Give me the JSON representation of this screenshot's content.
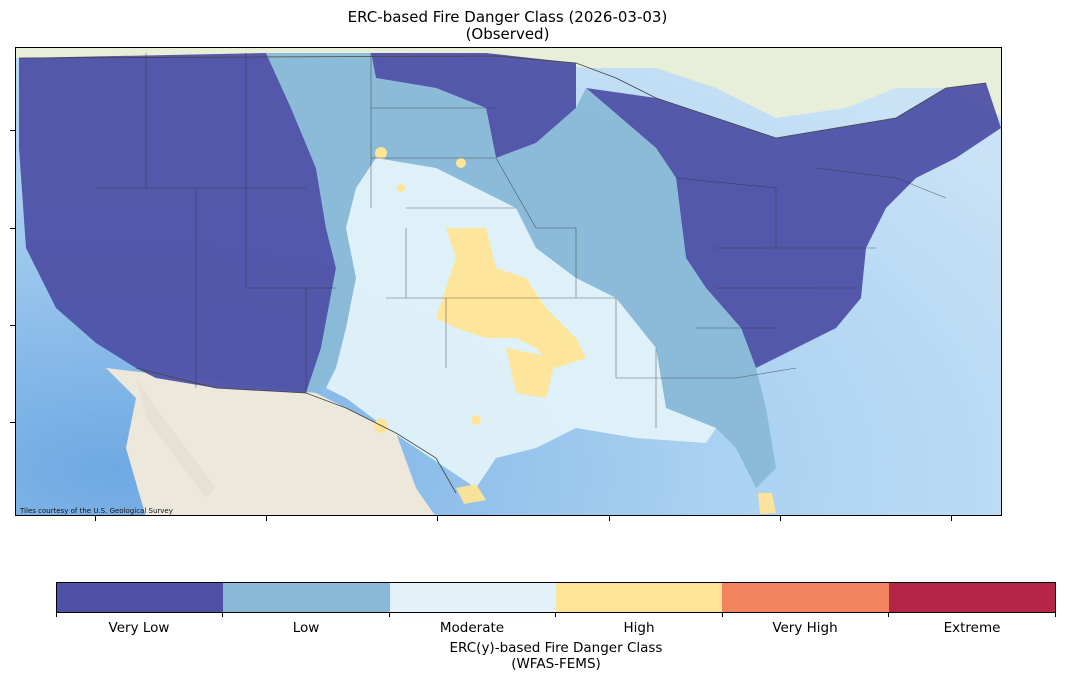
{
  "title_line1": "ERC-based Fire Danger Class (2026-03-03)",
  "title_line2": "(Observed)",
  "map": {
    "basemap_credit": "Tiles courtesy of the U.S. Geological Survey",
    "basemap_colors": {
      "ocean": "#9fcbee",
      "land": "#eeeae0"
    },
    "region": "Contiguous United States"
  },
  "colorbar": {
    "classes": [
      {
        "label": "Very Low",
        "color": "#4e51a6"
      },
      {
        "label": "Low",
        "color": "#89b9d6"
      },
      {
        "label": "Moderate",
        "color": "#e2f2f8"
      },
      {
        "label": "High",
        "color": "#fee497"
      },
      {
        "label": "Very High",
        "color": "#f4845e"
      },
      {
        "label": "Extreme",
        "color": "#b42547"
      }
    ],
    "title_line1": "ERC(y)-based Fire Danger Class",
    "title_line2": "(WFAS-FEMS)"
  }
}
